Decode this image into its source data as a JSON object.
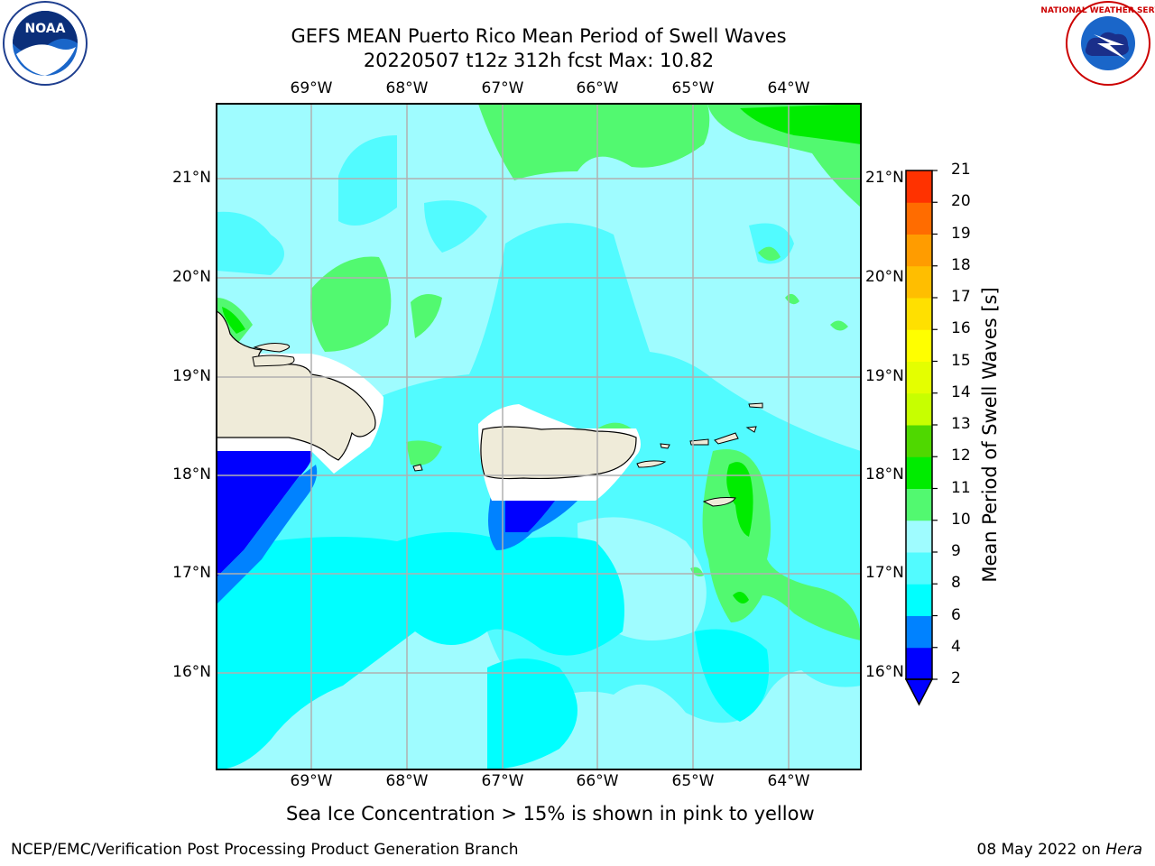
{
  "header": {
    "title_line1": "GEFS MEAN Puerto Rico Mean Period of Swell Waves",
    "title_line2": "20220507 t12z 312h fcst    Max: 10.82"
  },
  "logos": {
    "left": "noaa-logo",
    "right": "national-weather-service-logo",
    "left_text": "NOAA",
    "right_text": "NATIONAL WEATHER SERVICE"
  },
  "map": {
    "lon_labels": [
      "69°W",
      "68°W",
      "67°W",
      "66°W",
      "65°W",
      "64°W"
    ],
    "lat_labels": [
      "21°N",
      "20°N",
      "19°N",
      "18°N",
      "17°N",
      "16°N"
    ],
    "background_color": "#9ffcff",
    "land_color": "#efebd9"
  },
  "colorbar": {
    "label": "Mean Period of Swell Waves [s]",
    "ticks": [
      "2",
      "4",
      "6",
      "8",
      "9",
      "10",
      "11",
      "12",
      "13",
      "14",
      "15",
      "16",
      "17",
      "18",
      "19",
      "20",
      "21"
    ],
    "colors": [
      "#0000ff",
      "#0082ff",
      "#00ffff",
      "#52fbff",
      "#9ffcff",
      "#52f970",
      "#00ec00",
      "#4fd800",
      "#c7ff00",
      "#e4ff00",
      "#ffff00",
      "#ffe000",
      "#ffbe00",
      "#ff9c00",
      "#ff6c00",
      "#ff3200",
      "#ff0000"
    ],
    "under_color": "#0000ff"
  },
  "footer": {
    "note": "Sea Ice Concentration > 15% is shown in pink to yellow",
    "branch": "NCEP/EMC/Verification Post Processing Product Generation Branch",
    "date": "08 May 2022 on",
    "host": "Hera"
  }
}
